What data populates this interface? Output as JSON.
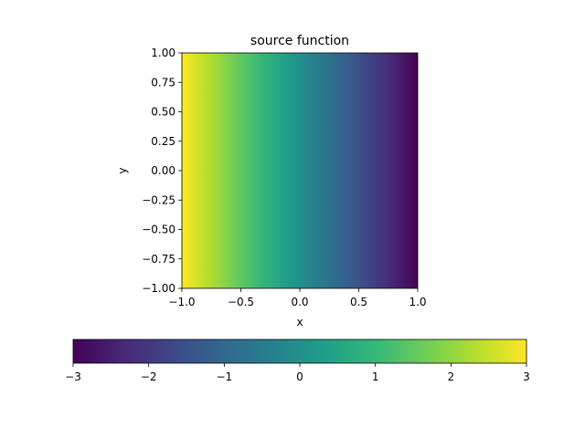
{
  "chart_data": {
    "type": "heatmap",
    "title": "source function",
    "xlabel": "x",
    "ylabel": "y",
    "xlim": [
      -1.0,
      1.0
    ],
    "ylim": [
      -1.0,
      1.0
    ],
    "x_ticks": [
      -1.0,
      -0.5,
      0.0,
      0.5,
      1.0
    ],
    "x_tick_labels": [
      "−1.0",
      "−0.5",
      "0.0",
      "0.5",
      "1.0"
    ],
    "y_ticks": [
      1.0,
      0.75,
      0.5,
      0.25,
      0.0,
      -0.25,
      -0.5,
      -0.75,
      -1.0
    ],
    "y_tick_labels": [
      "1.00",
      "0.75",
      "0.50",
      "0.25",
      "0.00",
      "−0.25",
      "−0.50",
      "−0.75",
      "−1.00"
    ],
    "colormap": "viridis",
    "field": "value = -3 * x (varies only along x)",
    "value_at_x_min": 3,
    "value_at_x_max": -3,
    "grid": false,
    "colorbar": {
      "orientation": "horizontal",
      "placement": "bottom",
      "range": [
        -3,
        3
      ],
      "ticks": [
        -3,
        -2,
        -1,
        0,
        1,
        2,
        3
      ],
      "tick_labels": [
        "−3",
        "−2",
        "−1",
        "0",
        "1",
        "2",
        "3"
      ]
    }
  }
}
